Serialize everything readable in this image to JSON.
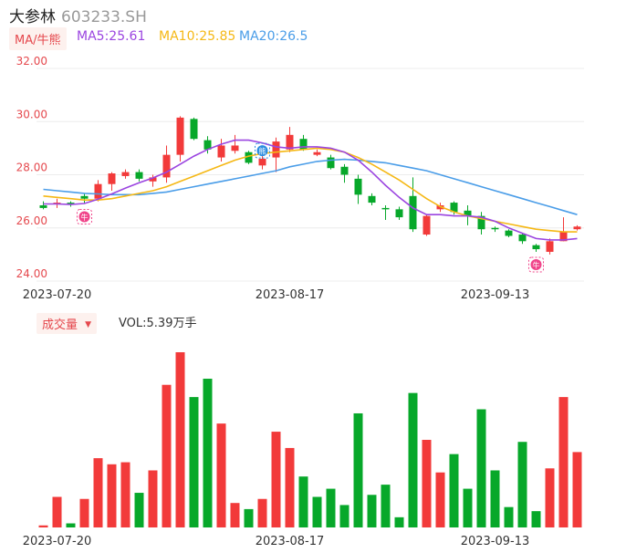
{
  "header": {
    "name": "大参林",
    "code": "603233.SH"
  },
  "ma_legend": {
    "tag": "MA/牛熊",
    "ma5": "MA5:25.61",
    "ma10": "MA10:25.85",
    "ma20": "MA20:26.5"
  },
  "vol_legend": {
    "tag": "成交量",
    "caret": "▼",
    "value": "VOL:5.39万手"
  },
  "colors": {
    "up": "#f23a3a",
    "down": "#07a82a",
    "ma5": "#9b45e0",
    "ma10": "#f5b815",
    "ma20": "#4a9de8"
  },
  "chart_data": [
    {
      "type": "candlestick",
      "y_ticks": [
        "32.00",
        "30.00",
        "28.00",
        "26.00",
        "24.00"
      ],
      "ylim": [
        24,
        32
      ],
      "x_tick_labels": [
        "2023-07-20",
        "2023-08-17",
        "2023-09-13"
      ],
      "x_tick_index": [
        1,
        18,
        33
      ],
      "markers": [
        {
          "index": 3,
          "label": "牛",
          "kind": "bull"
        },
        {
          "index": 16,
          "label": "熊",
          "kind": "bear"
        },
        {
          "index": 36,
          "label": "牛",
          "kind": "bull"
        }
      ],
      "candles": [
        {
          "o": 26.85,
          "h": 27.0,
          "l": 26.7,
          "c": 26.75
        },
        {
          "o": 26.9,
          "h": 27.1,
          "l": 26.75,
          "c": 26.95
        },
        {
          "o": 26.95,
          "h": 27.0,
          "l": 26.8,
          "c": 26.9
        },
        {
          "o": 27.2,
          "h": 27.3,
          "l": 26.9,
          "c": 27.1
        },
        {
          "o": 27.1,
          "h": 27.8,
          "l": 27.0,
          "c": 27.65
        },
        {
          "o": 27.65,
          "h": 28.1,
          "l": 27.4,
          "c": 28.05
        },
        {
          "o": 27.95,
          "h": 28.2,
          "l": 27.85,
          "c": 28.1
        },
        {
          "o": 28.1,
          "h": 28.2,
          "l": 27.75,
          "c": 27.85
        },
        {
          "o": 27.75,
          "h": 28.0,
          "l": 27.55,
          "c": 27.9
        },
        {
          "o": 27.9,
          "h": 29.1,
          "l": 27.7,
          "c": 28.75
        },
        {
          "o": 28.75,
          "h": 30.2,
          "l": 28.5,
          "c": 30.15
        },
        {
          "o": 30.1,
          "h": 30.15,
          "l": 29.3,
          "c": 29.35
        },
        {
          "o": 29.3,
          "h": 29.45,
          "l": 28.8,
          "c": 28.95
        },
        {
          "o": 28.65,
          "h": 29.35,
          "l": 28.5,
          "c": 29.1
        },
        {
          "o": 28.9,
          "h": 29.5,
          "l": 28.8,
          "c": 29.1
        },
        {
          "o": 28.85,
          "h": 28.9,
          "l": 28.4,
          "c": 28.45
        },
        {
          "o": 28.35,
          "h": 28.7,
          "l": 28.2,
          "c": 28.6
        },
        {
          "o": 28.65,
          "h": 29.4,
          "l": 28.1,
          "c": 29.25
        },
        {
          "o": 28.95,
          "h": 29.8,
          "l": 28.85,
          "c": 29.5
        },
        {
          "o": 29.35,
          "h": 29.5,
          "l": 28.9,
          "c": 28.95
        },
        {
          "o": 28.75,
          "h": 28.95,
          "l": 28.7,
          "c": 28.85
        },
        {
          "o": 28.65,
          "h": 28.75,
          "l": 28.2,
          "c": 28.25
        },
        {
          "o": 28.3,
          "h": 28.4,
          "l": 27.7,
          "c": 28.0
        },
        {
          "o": 27.85,
          "h": 28.0,
          "l": 26.9,
          "c": 27.25
        },
        {
          "o": 27.2,
          "h": 27.3,
          "l": 26.85,
          "c": 26.95
        },
        {
          "o": 26.75,
          "h": 26.85,
          "l": 26.3,
          "c": 26.7
        },
        {
          "o": 26.7,
          "h": 26.8,
          "l": 26.3,
          "c": 26.4
        },
        {
          "o": 27.2,
          "h": 27.9,
          "l": 25.85,
          "c": 25.95
        },
        {
          "o": 25.75,
          "h": 26.5,
          "l": 25.7,
          "c": 26.45
        },
        {
          "o": 26.7,
          "h": 26.95,
          "l": 26.6,
          "c": 26.85
        },
        {
          "o": 26.95,
          "h": 27.0,
          "l": 26.5,
          "c": 26.6
        },
        {
          "o": 26.65,
          "h": 26.85,
          "l": 26.1,
          "c": 26.45
        },
        {
          "o": 26.45,
          "h": 26.6,
          "l": 25.75,
          "c": 25.95
        },
        {
          "o": 26.0,
          "h": 26.05,
          "l": 25.85,
          "c": 25.95
        },
        {
          "o": 25.9,
          "h": 25.95,
          "l": 25.65,
          "c": 25.7
        },
        {
          "o": 25.75,
          "h": 25.8,
          "l": 25.4,
          "c": 25.5
        },
        {
          "o": 25.35,
          "h": 25.4,
          "l": 25.1,
          "c": 25.2
        },
        {
          "o": 25.1,
          "h": 25.6,
          "l": 25.0,
          "c": 25.5
        },
        {
          "o": 25.5,
          "h": 26.4,
          "l": 25.5,
          "c": 25.85
        },
        {
          "o": 25.95,
          "h": 26.1,
          "l": 25.9,
          "c": 26.05
        }
      ],
      "ma5": [
        26.9,
        26.9,
        26.88,
        26.92,
        27.08,
        27.28,
        27.5,
        27.7,
        27.88,
        28.1,
        28.4,
        28.7,
        28.95,
        29.15,
        29.3,
        29.3,
        29.2,
        29.05,
        29.0,
        29.05,
        29.05,
        29.0,
        28.85,
        28.55,
        28.1,
        27.6,
        27.15,
        26.75,
        26.5,
        26.5,
        26.45,
        26.45,
        26.4,
        26.25,
        26.0,
        25.8,
        25.6,
        25.55,
        25.55,
        25.6
      ],
      "ma10": [
        27.2,
        27.15,
        27.1,
        27.05,
        27.05,
        27.1,
        27.2,
        27.3,
        27.4,
        27.55,
        27.75,
        27.95,
        28.15,
        28.35,
        28.55,
        28.7,
        28.8,
        28.85,
        28.9,
        28.95,
        29.0,
        28.95,
        28.85,
        28.65,
        28.4,
        28.1,
        27.8,
        27.45,
        27.1,
        26.8,
        26.6,
        26.45,
        26.35,
        26.25,
        26.15,
        26.05,
        25.95,
        25.9,
        25.85,
        25.85
      ],
      "ma20": [
        27.45,
        27.4,
        27.35,
        27.3,
        27.28,
        27.25,
        27.25,
        27.25,
        27.3,
        27.35,
        27.45,
        27.55,
        27.65,
        27.75,
        27.85,
        27.95,
        28.05,
        28.15,
        28.3,
        28.4,
        28.5,
        28.55,
        28.58,
        28.55,
        28.5,
        28.45,
        28.35,
        28.25,
        28.15,
        28.0,
        27.85,
        27.7,
        27.55,
        27.4,
        27.25,
        27.1,
        26.95,
        26.8,
        26.65,
        26.5
      ]
    },
    {
      "type": "bar",
      "x_tick_labels": [
        "2023-07-20",
        "2023-08-17",
        "2023-09-13"
      ],
      "x_tick_index": [
        1,
        18,
        33
      ],
      "values": [
        1,
        15,
        2,
        14,
        34,
        31,
        32,
        17,
        28,
        70,
        86,
        64,
        73,
        51,
        12,
        9,
        14,
        47,
        39,
        25,
        15,
        19,
        11,
        56,
        16,
        21,
        5,
        66,
        43,
        27,
        36,
        19,
        58,
        28,
        10,
        42,
        8,
        29,
        64,
        37
      ],
      "direction": [
        "up",
        "up",
        "down",
        "up",
        "up",
        "up",
        "up",
        "down",
        "up",
        "up",
        "up",
        "down",
        "down",
        "up",
        "up",
        "down",
        "up",
        "up",
        "up",
        "down",
        "down",
        "down",
        "down",
        "down",
        "down",
        "down",
        "down",
        "down",
        "up",
        "up",
        "down",
        "down",
        "down",
        "down",
        "down",
        "down",
        "down",
        "up",
        "up",
        "up"
      ]
    }
  ]
}
